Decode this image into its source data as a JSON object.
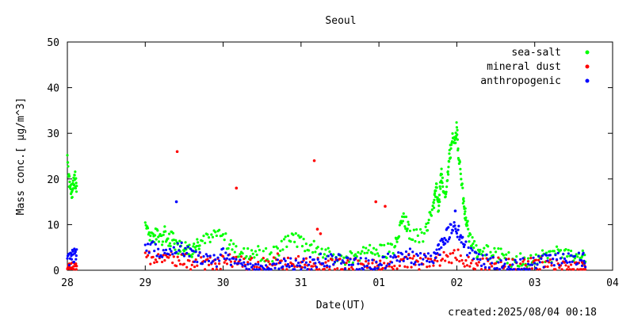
{
  "chart_data": {
    "type": "scatter",
    "title": "Seoul",
    "xlabel": "Date(UT)",
    "ylabel": "Mass conc.[ μg/m^3]",
    "xlim": [
      0,
      7
    ],
    "ylim": [
      0,
      50
    ],
    "x_tick_labels": [
      "28",
      "29",
      "30",
      "31",
      "01",
      "02",
      "03",
      "04"
    ],
    "y_ticks": [
      0,
      10,
      20,
      30,
      40,
      50
    ],
    "grid": false,
    "legend_position": "top-right",
    "x_units_note": "days",
    "series": [
      {
        "name": "sea-salt",
        "color": "#00ff00",
        "x": [
          0.0,
          0.02,
          0.04,
          0.06,
          0.08,
          0.1,
          0.12,
          1.0,
          1.05,
          1.1,
          1.15,
          1.2,
          1.25,
          1.3,
          1.35,
          1.4,
          1.45,
          1.5,
          1.55,
          1.6,
          1.65,
          1.7,
          1.8,
          1.9,
          2.0,
          2.1,
          2.2,
          2.3,
          2.4,
          2.5,
          2.6,
          2.7,
          2.8,
          2.9,
          3.0,
          3.1,
          3.2,
          3.3,
          3.4,
          3.5,
          3.6,
          3.7,
          3.8,
          3.9,
          4.0,
          4.1,
          4.2,
          4.25,
          4.3,
          4.35,
          4.4,
          4.5,
          4.6,
          4.65,
          4.7,
          4.72,
          4.74,
          4.76,
          4.78,
          4.8,
          4.82,
          4.85,
          4.88,
          4.9,
          4.92,
          4.95,
          4.98,
          5.0,
          5.02,
          5.05,
          5.08,
          5.1,
          5.12,
          5.15,
          5.2,
          5.25,
          5.3,
          5.4,
          5.5,
          5.6,
          5.7,
          5.8,
          5.9,
          6.0,
          6.1,
          6.2,
          6.3,
          6.4,
          6.5,
          6.6,
          6.65
        ],
        "y": [
          26,
          21,
          19,
          18,
          20,
          21,
          19,
          11,
          9,
          8,
          9,
          7,
          9,
          7,
          8,
          6,
          6,
          5,
          6,
          5,
          6,
          7,
          8,
          9,
          8,
          6,
          5,
          4,
          5,
          4,
          4,
          5,
          7,
          8,
          7,
          6,
          6,
          5,
          4,
          3,
          3,
          4,
          5,
          5,
          5,
          5,
          6,
          9,
          13,
          11,
          9,
          8,
          9,
          12,
          15,
          18,
          19,
          14,
          17,
          22,
          20,
          18,
          21,
          25,
          27,
          31,
          29,
          33,
          26,
          22,
          17,
          14,
          12,
          9,
          7,
          5,
          5,
          5,
          4,
          4,
          3,
          3,
          3,
          3,
          4,
          4,
          5,
          5,
          4,
          4,
          3
        ]
      },
      {
        "name": "mineral dust",
        "color": "#ff0000",
        "x": [
          0.0,
          0.03,
          0.06,
          0.09,
          0.12,
          1.0,
          1.1,
          1.2,
          1.3,
          1.4,
          1.5,
          1.6,
          1.7,
          1.8,
          1.9,
          2.0,
          2.1,
          2.2,
          2.3,
          2.4,
          2.5,
          2.6,
          2.7,
          2.8,
          2.9,
          3.0,
          3.1,
          3.2,
          3.3,
          3.4,
          3.5,
          3.6,
          3.7,
          3.8,
          3.9,
          4.0,
          4.1,
          4.2,
          4.3,
          4.4,
          4.5,
          4.6,
          4.7,
          4.8,
          4.9,
          5.0,
          5.1,
          5.2,
          5.3,
          5.4,
          5.5,
          5.6,
          5.7,
          5.8,
          5.9,
          6.0,
          6.1,
          6.2,
          6.3,
          6.4,
          6.5,
          6.6,
          6.65
        ],
        "y": [
          1,
          1,
          1,
          1,
          1,
          4,
          3,
          3,
          4,
          3,
          3,
          2,
          3,
          2,
          2,
          3,
          3,
          3,
          2,
          2,
          2,
          2,
          3,
          2,
          2,
          3,
          2,
          2,
          2,
          2,
          2,
          2,
          2,
          2,
          2,
          2,
          2,
          2,
          3,
          3,
          2,
          3,
          3,
          3,
          4,
          4,
          3,
          2,
          2,
          2,
          2,
          2,
          2,
          2,
          2,
          2,
          2,
          2,
          2,
          1,
          1,
          1,
          1
        ],
        "outliers_x": [
          1.41,
          2.17,
          3.17,
          3.21,
          3.25,
          3.96,
          4.08
        ],
        "outliers_y": [
          26,
          18,
          24,
          9,
          8,
          15,
          14
        ]
      },
      {
        "name": "anthropogenic",
        "color": "#0000ff",
        "x": [
          0.0,
          0.03,
          0.06,
          0.09,
          0.12,
          1.0,
          1.1,
          1.2,
          1.3,
          1.4,
          1.5,
          1.6,
          1.7,
          1.8,
          1.9,
          2.0,
          2.1,
          2.2,
          2.3,
          2.4,
          2.5,
          2.6,
          2.7,
          2.8,
          2.9,
          3.0,
          3.1,
          3.2,
          3.3,
          3.4,
          3.5,
          3.6,
          3.7,
          3.8,
          3.9,
          4.0,
          4.1,
          4.2,
          4.3,
          4.4,
          4.5,
          4.6,
          4.7,
          4.75,
          4.8,
          4.85,
          4.9,
          4.95,
          5.0,
          5.05,
          5.1,
          5.2,
          5.3,
          5.4,
          5.5,
          5.6,
          5.7,
          5.8,
          5.9,
          6.0,
          6.1,
          6.2,
          6.3,
          6.4,
          6.5,
          6.6,
          6.65
        ],
        "y": [
          3,
          3,
          4,
          4,
          5,
          6,
          6,
          5,
          5,
          6,
          5,
          4,
          4,
          3,
          3,
          4,
          3,
          3,
          2,
          2,
          1,
          1,
          2,
          2,
          2,
          2,
          2,
          3,
          3,
          3,
          3,
          2,
          2,
          2,
          2,
          2,
          3,
          3,
          4,
          4,
          3,
          3,
          4,
          5,
          6,
          8,
          9,
          11,
          10,
          8,
          6,
          4,
          3,
          3,
          2,
          2,
          1,
          2,
          2,
          2,
          3,
          3,
          3,
          4,
          4,
          3,
          3
        ],
        "outliers_x": [
          1.4,
          4.98
        ],
        "outliers_y": [
          15,
          13
        ]
      }
    ]
  },
  "footer": {
    "created_text": "created:2025/08/04 00:18"
  }
}
